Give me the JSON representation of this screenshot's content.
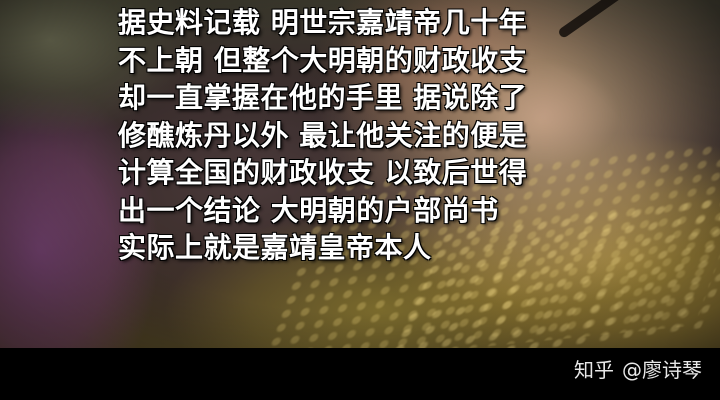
{
  "subtitle": {
    "lines": [
      "据史料记载 明世宗嘉靖帝几十年",
      "不上朝 但整个大明朝的财政收支",
      "却一直掌握在他的手里 据说除了",
      "修醮炼丹以外 最让他关注的便是",
      "计算全国的财政收支 以致后世得",
      "出一个结论 大明朝的户部尚书",
      "实际上就是嘉靖皇帝本人"
    ]
  },
  "watermark": {
    "platform": "知乎",
    "author": "@廖诗琴"
  },
  "colors": {
    "subtitle_text": "#ffffff",
    "bar_background": "#000000",
    "watermark_text": "#e8e8e8"
  }
}
